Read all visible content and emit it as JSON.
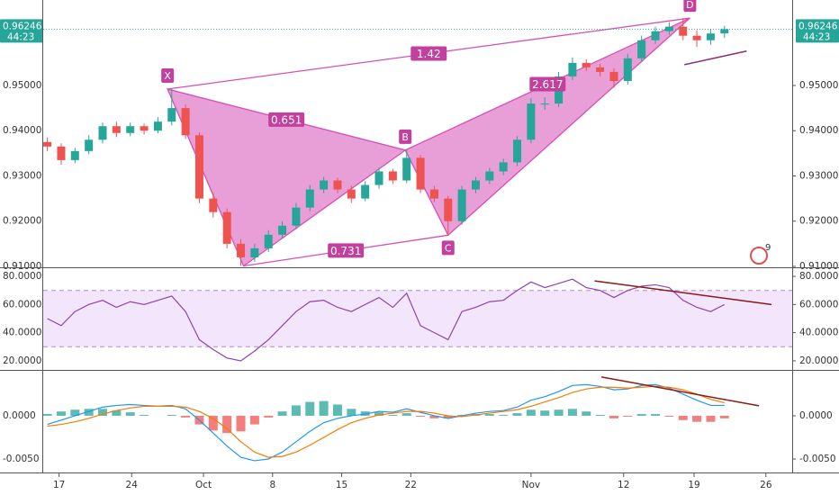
{
  "chart_data": [
    {
      "type": "candlestick",
      "open": [
        0.9375,
        0.9365,
        0.9335,
        0.9355,
        0.938,
        0.941,
        0.9395,
        0.941,
        0.94,
        0.942,
        0.945,
        0.939,
        0.925,
        0.922,
        0.915,
        0.912,
        0.914,
        0.917,
        0.919,
        0.923,
        0.927,
        0.929,
        0.927,
        0.925,
        0.928,
        0.931,
        0.929,
        0.934,
        0.927,
        0.925,
        0.92,
        0.927,
        0.929,
        0.931,
        0.933,
        0.938,
        0.946,
        0.946,
        0.952,
        0.955,
        0.954,
        0.953,
        0.951,
        0.956,
        0.96,
        0.962,
        0.963,
        0.961,
        0.96,
        0.9615
      ],
      "high": [
        0.9385,
        0.9372,
        0.9362,
        0.939,
        0.9418,
        0.942,
        0.9418,
        0.9416,
        0.943,
        0.9492,
        0.9458,
        0.9396,
        0.9262,
        0.9228,
        0.916,
        0.915,
        0.918,
        0.92,
        0.924,
        0.928,
        0.9298,
        0.9296,
        0.9278,
        0.9288,
        0.9318,
        0.9316,
        0.9357,
        0.9346,
        0.9278,
        0.9256,
        0.9278,
        0.9298,
        0.9318,
        0.9338,
        0.9388,
        0.9472,
        0.9474,
        0.953,
        0.9562,
        0.9558,
        0.9548,
        0.9538,
        0.957,
        0.961,
        0.963,
        0.964,
        0.9649,
        0.9622,
        0.9624,
        0.9632
      ],
      "low": [
        0.9355,
        0.9325,
        0.9328,
        0.9348,
        0.9372,
        0.9386,
        0.9388,
        0.9392,
        0.9394,
        0.9412,
        0.9382,
        0.924,
        0.9208,
        0.914,
        0.9101,
        0.911,
        0.9132,
        0.9162,
        0.9182,
        0.9222,
        0.9262,
        0.9262,
        0.924,
        0.9244,
        0.9272,
        0.9282,
        0.9284,
        0.9262,
        0.9242,
        0.9169,
        0.9192,
        0.9262,
        0.9282,
        0.9302,
        0.9322,
        0.9372,
        0.9446,
        0.9452,
        0.9512,
        0.9532,
        0.952,
        0.9495,
        0.9502,
        0.9552,
        0.9592,
        0.9612,
        0.96,
        0.9585,
        0.959,
        0.9605
      ],
      "close": [
        0.9365,
        0.9335,
        0.9355,
        0.938,
        0.941,
        0.9395,
        0.941,
        0.94,
        0.942,
        0.945,
        0.939,
        0.925,
        0.922,
        0.915,
        0.912,
        0.914,
        0.917,
        0.919,
        0.923,
        0.927,
        0.929,
        0.927,
        0.925,
        0.928,
        0.931,
        0.929,
        0.934,
        0.927,
        0.925,
        0.92,
        0.927,
        0.929,
        0.931,
        0.933,
        0.938,
        0.946,
        0.946,
        0.952,
        0.955,
        0.954,
        0.953,
        0.951,
        0.956,
        0.96,
        0.962,
        0.963,
        0.961,
        0.96,
        0.9615,
        0.96246
      ],
      "up_color": "#26a69a",
      "down_color": "#ef5350",
      "ylim": [
        0.9098,
        0.9689
      ],
      "yticks": [
        {
          "value": 0.95,
          "label": "0.95000"
        },
        {
          "value": 0.94,
          "label": "0.94000"
        },
        {
          "value": 0.93,
          "label": "0.93000"
        },
        {
          "value": 0.92,
          "label": "0.92000"
        },
        {
          "value": 0.91,
          "label": "0.91000"
        }
      ],
      "last_price_label": "0.96246",
      "countdown": "44:23",
      "pattern": {
        "color": "#d64fb5",
        "points": [
          {
            "label": "X",
            "x": 8.7,
            "y": 0.9492
          },
          {
            "x": 14.2,
            "y": 0.9101
          },
          {
            "label": "B",
            "x": 25.9,
            "y": 0.9357
          },
          {
            "label": "C",
            "x": 29.0,
            "y": 0.9169
          },
          {
            "label": "D",
            "x": 46.5,
            "y": 0.9649
          }
        ],
        "ratios": [
          0.651,
          1.42,
          0.731,
          2.617
        ]
      },
      "trendline": {
        "color": "#8e2a6e",
        "x": [
          46.1,
          50.6
        ],
        "y": [
          0.9546,
          0.9576
        ]
      },
      "badge": 9
    },
    {
      "type": "line",
      "color": "#8e44ad",
      "values": [
        50,
        45,
        55,
        60,
        63,
        58,
        62,
        60,
        63,
        66,
        55,
        35,
        28,
        22,
        20,
        27,
        35,
        45,
        55,
        62,
        63,
        58,
        55,
        60,
        65,
        58,
        68,
        45,
        40,
        35,
        55,
        58,
        62,
        63,
        70,
        76,
        72,
        75,
        78,
        72,
        70,
        65,
        70,
        73,
        74,
        72,
        63,
        58,
        55,
        60
      ],
      "band": [
        30,
        70
      ],
      "ylim": [
        14.2,
        85.8
      ],
      "yticks": [
        {
          "value": 80,
          "label": "80.0000"
        },
        {
          "value": 60,
          "label": "60.0000"
        },
        {
          "value": 40,
          "label": "40.0000"
        },
        {
          "value": 20,
          "label": "20.0000"
        }
      ],
      "trendline": {
        "color": "#8b1a1a",
        "x": [
          39.6,
          52.4
        ],
        "y": [
          76.8,
          60.0
        ]
      }
    },
    {
      "type": "macd",
      "series": [
        {
          "color": "#2196f3",
          "values": [
            -0.001,
            -0.0005,
            0,
            0.0005,
            0.001,
            0.0012,
            0.0013,
            0.0012,
            0.0011,
            0.0012,
            0.0008,
            -0.0005,
            -0.002,
            -0.0035,
            -0.0048,
            -0.0052,
            -0.005,
            -0.0042,
            -0.003,
            -0.0018,
            -0.0008,
            -0.0003,
            0,
            0.0002,
            0.0005,
            0.0004,
            0.0008,
            0.0004,
            0,
            -0.0003,
            0,
            0.0003,
            0.0005,
            0.0006,
            0.001,
            0.0018,
            0.0022,
            0.0028,
            0.0035,
            0.0036,
            0.0034,
            0.003,
            0.0031,
            0.0035,
            0.0036,
            0.0032,
            0.0025,
            0.0018,
            0.0012,
            0.0012
          ]
        },
        {
          "color": "#f57c00",
          "values": [
            -0.0012,
            -0.001,
            -0.0007,
            -0.0003,
            0.0002,
            0.0006,
            0.0009,
            0.0011,
            0.0011,
            0.0011,
            0.001,
            0.0005,
            -0.0003,
            -0.0015,
            -0.003,
            -0.0042,
            -0.0048,
            -0.0047,
            -0.0042,
            -0.0034,
            -0.0025,
            -0.0016,
            -0.0008,
            -0.0003,
            0.0001,
            0.0003,
            0.0005,
            0.0005,
            0.0003,
            0,
            -0.0001,
            0.0001,
            0.0003,
            0.0005,
            0.0007,
            0.0011,
            0.0016,
            0.0021,
            0.0027,
            0.0031,
            0.0033,
            0.0033,
            0.0032,
            0.0033,
            0.0034,
            0.0033,
            0.003,
            0.0025,
            0.0019,
            0.0015
          ]
        }
      ],
      "histogram": {
        "up_color": "#26a69a",
        "down_color": "#ef5350",
        "values": [
          0.0002,
          0.0005,
          0.0007,
          0.0008,
          0.0008,
          0.0006,
          0.0004,
          0.0001,
          0,
          0.0001,
          -0.0002,
          -0.001,
          -0.0017,
          -0.002,
          -0.0018,
          -0.001,
          -0.0002,
          0.0005,
          0.0012,
          0.0016,
          0.0017,
          0.0013,
          0.0008,
          0.0005,
          0.0004,
          0.0001,
          0.0003,
          -0.0001,
          -0.0003,
          -0.0003,
          0.0001,
          0.0002,
          0.0002,
          0.0001,
          0.0003,
          0.0007,
          0.0006,
          0.0007,
          0.0008,
          0.0005,
          0.0001,
          -0.0003,
          -0.0001,
          0.0002,
          0.0002,
          -0.0001,
          -0.0005,
          -0.0007,
          -0.0007,
          -0.0003
        ]
      },
      "ylim": [
        -0.00656,
        0.0052
      ],
      "yticks": [
        {
          "value": 0,
          "label": "0.0000"
        },
        {
          "value": -0.005,
          "label": "-0.0050"
        }
      ],
      "trendline": {
        "color": "#8b1a1a",
        "x": [
          40.1,
          51.5
        ],
        "y": [
          0.00448,
          0.00115
        ]
      },
      "xlim": [
        -0.3,
        53.9
      ],
      "xticks": [
        {
          "value": 0.85,
          "label": "17"
        },
        {
          "value": 6.1,
          "label": "24"
        },
        {
          "value": 11.3,
          "label": "Oct"
        },
        {
          "value": 16.3,
          "label": "8"
        },
        {
          "value": 21.3,
          "label": "15"
        },
        {
          "value": 26.3,
          "label": "22"
        },
        {
          "value": 35.0,
          "label": "Nov"
        },
        {
          "value": 41.7,
          "label": "12"
        },
        {
          "value": 46.8,
          "label": "19"
        },
        {
          "value": 52.0,
          "label": "26"
        }
      ]
    }
  ]
}
